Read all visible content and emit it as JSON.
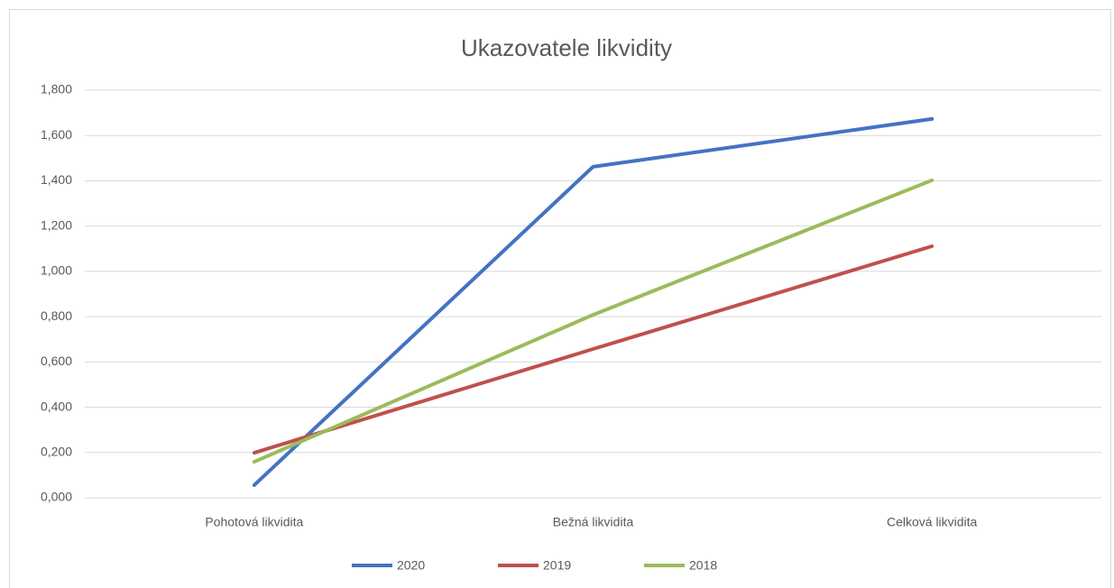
{
  "chart_data": {
    "type": "line",
    "title": "Ukazovatele likvidity",
    "categories": [
      "Pohotová likvidita",
      "Bežná likvidita",
      "Celková likvidita"
    ],
    "series": [
      {
        "name": "2020",
        "color": "#4472c4",
        "values": [
          0.056,
          1.462,
          1.673
        ]
      },
      {
        "name": "2019",
        "color": "#c0504d",
        "values": [
          0.199,
          0.657,
          1.111
        ]
      },
      {
        "name": "2018",
        "color": "#9bbb59",
        "values": [
          0.159,
          0.808,
          1.402
        ]
      }
    ],
    "ylim": [
      0,
      1.8
    ],
    "yticks": [
      {
        "value": 0,
        "label": "0,000"
      },
      {
        "value": 0.2,
        "label": "0,200"
      },
      {
        "value": 0.4,
        "label": "0,400"
      },
      {
        "value": 0.6,
        "label": "0,600"
      },
      {
        "value": 0.8,
        "label": "0,800"
      },
      {
        "value": 1,
        "label": "1,000"
      },
      {
        "value": 1.2,
        "label": "1,200"
      },
      {
        "value": 1.4,
        "label": "1,400"
      },
      {
        "value": 1.6,
        "label": "1,600"
      },
      {
        "value": 1.8,
        "label": "1,800"
      }
    ],
    "grid": true,
    "legend": "bottom"
  }
}
